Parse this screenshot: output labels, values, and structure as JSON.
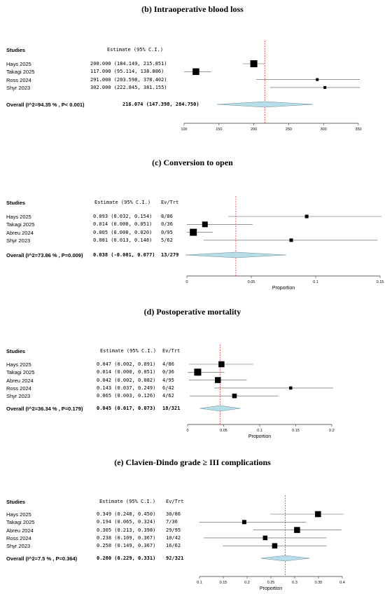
{
  "panels": [
    {
      "title": "(b) Intraoperative blood loss",
      "studies_header": "Studies",
      "estimate_header": "Estimate (95% C.I.)",
      "evtrt_header": "",
      "x_axis_label": "",
      "chart_data": {
        "type": "forest",
        "xlim": [
          100,
          350
        ],
        "ticks": [
          100,
          150,
          200,
          250,
          300,
          350
        ],
        "tick_labels": [
          "100",
          "150",
          "200",
          "250",
          "300",
          "350"
        ],
        "reference_line": 216.074,
        "studies": [
          {
            "name": "Hays 2025",
            "estimate_text": "200.000 (184.149, 215.851)",
            "evtrt": "",
            "est": 200.0,
            "lo": 184.149,
            "hi": 215.851,
            "weight": 1.0
          },
          {
            "name": "Takagi 2025",
            "estimate_text": "117.000 (95.114, 138.886)",
            "evtrt": "",
            "est": 117.0,
            "lo": 95.114,
            "hi": 138.886,
            "weight": 0.95
          },
          {
            "name": "Ross 2024",
            "estimate_text": "291.000 (203.598, 378.402)",
            "evtrt": "",
            "est": 291.0,
            "lo": 203.598,
            "hi": 378.402,
            "weight": 0.4
          },
          {
            "name": "Shyr 2023",
            "estimate_text": "302.000 (222.845, 381.155)",
            "evtrt": "",
            "est": 302.0,
            "lo": 222.845,
            "hi": 381.155,
            "weight": 0.4
          }
        ],
        "overall": {
          "label": "Overall (I^2=94.35 % , P< 0.001)",
          "estimate_text": "216.074 (147.398, 284.750)",
          "evtrt": "",
          "est": 216.074,
          "lo": 147.398,
          "hi": 284.75
        }
      }
    },
    {
      "title": "(c) Conversion to open",
      "studies_header": "Studies",
      "estimate_header": "Estimate (95% C.I.)",
      "evtrt_header": "Ev/Trt",
      "x_axis_label": "Proportion",
      "chart_data": {
        "type": "forest",
        "xlim": [
          0,
          0.15
        ],
        "ticks": [
          0,
          0.05,
          0.1,
          0.15
        ],
        "tick_labels": [
          "0",
          "0.05",
          "0.1",
          "0.15"
        ],
        "reference_line": 0.038,
        "studies": [
          {
            "name": "Hays 2025",
            "estimate_text": "0.093 (0.032, 0.154)",
            "evtrt": "8/86",
            "est": 0.093,
            "lo": 0.032,
            "hi": 0.154,
            "weight": 0.5
          },
          {
            "name": "Takagi 2025",
            "estimate_text": "0.014 (0.000, 0.051)",
            "evtrt": "0/36",
            "est": 0.014,
            "lo": 0.0,
            "hi": 0.051,
            "weight": 0.8
          },
          {
            "name": "Abreu 2024",
            "estimate_text": "0.005 (0.000, 0.020)",
            "evtrt": "0/95",
            "est": 0.005,
            "lo": 0.0,
            "hi": 0.02,
            "weight": 1.0
          },
          {
            "name": "Shyr 2023",
            "estimate_text": "0.081 (0.013, 0.148)",
            "evtrt": "5/62",
            "est": 0.081,
            "lo": 0.013,
            "hi": 0.148,
            "weight": 0.5
          }
        ],
        "overall": {
          "label": "Overall (I^2=73.86 % , P=0.009)",
          "estimate_text": "0.038 (-0.001, 0.077)",
          "evtrt": "13/279",
          "est": 0.038,
          "lo": -0.001,
          "hi": 0.077
        }
      }
    },
    {
      "title": "(d) Postoperative mortality",
      "studies_header": "Studies",
      "estimate_header": "Estimate (95% C.I.)",
      "evtrt_header": "Ev/Trt",
      "x_axis_label": "Proportion",
      "chart_data": {
        "type": "forest",
        "xlim": [
          0,
          0.2
        ],
        "ticks": [
          0,
          0.05,
          0.1,
          0.15,
          0.2
        ],
        "tick_labels": [
          "0",
          "0.05",
          "0.1",
          "0.15",
          "0.2"
        ],
        "reference_line": 0.045,
        "studies": [
          {
            "name": "Hays 2025",
            "estimate_text": "0.047 (0.002, 0.091)",
            "evtrt": "4/86",
            "est": 0.047,
            "lo": 0.002,
            "hi": 0.091,
            "weight": 0.85
          },
          {
            "name": "Takagi 2025",
            "estimate_text": "0.014 (0.000, 0.051)",
            "evtrt": "0/36",
            "est": 0.014,
            "lo": 0.0,
            "hi": 0.051,
            "weight": 1.0
          },
          {
            "name": "Abreu 2024",
            "estimate_text": "0.042 (0.002, 0.082)",
            "evtrt": "4/95",
            "est": 0.042,
            "lo": 0.002,
            "hi": 0.082,
            "weight": 0.85
          },
          {
            "name": "Ross 2024",
            "estimate_text": "0.143 (0.037, 0.249)",
            "evtrt": "6/42",
            "est": 0.143,
            "lo": 0.037,
            "hi": 0.249,
            "weight": 0.45
          },
          {
            "name": "Shyr 2023",
            "estimate_text": "0.065 (0.003, 0.126)",
            "evtrt": "4/62",
            "est": 0.065,
            "lo": 0.003,
            "hi": 0.126,
            "weight": 0.65
          }
        ],
        "overall": {
          "label": "Overall (I^2=36.34 % , P=0.179)",
          "estimate_text": "0.045 (0.017, 0.073)",
          "evtrt": "18/321",
          "est": 0.045,
          "lo": 0.017,
          "hi": 0.073
        }
      }
    },
    {
      "title": "(e) Clavien-Dindo grade ≥ III complications",
      "studies_header": "Studies",
      "estimate_header": "Estimate (95% C.I.)",
      "evtrt_header": "Ev/Trt",
      "x_axis_label": "Proportion",
      "chart_data": {
        "type": "forest",
        "xlim": [
          0.1,
          0.4
        ],
        "ticks": [
          0.1,
          0.15,
          0.2,
          0.25,
          0.3,
          0.35,
          0.4
        ],
        "tick_labels": [
          "0.1",
          "0.15",
          "0.2",
          "0.25",
          "0.3",
          "0.35",
          "0.4"
        ],
        "reference_line": 0.28,
        "studies": [
          {
            "name": "Hays 2025",
            "estimate_text": "0.349 (0.248, 0.450)",
            "evtrt": "30/86",
            "est": 0.349,
            "lo": 0.248,
            "hi": 0.45,
            "weight": 0.85
          },
          {
            "name": "Takagi 2025",
            "estimate_text": "0.194 (0.065, 0.324)",
            "evtrt": "7/36",
            "est": 0.194,
            "lo": 0.065,
            "hi": 0.324,
            "weight": 0.6
          },
          {
            "name": "Abreu 2024",
            "estimate_text": "0.305 (0.213, 0.398)",
            "evtrt": "29/95",
            "est": 0.305,
            "lo": 0.213,
            "hi": 0.398,
            "weight": 0.85
          },
          {
            "name": "Ross 2024",
            "estimate_text": "0.238 (0.109, 0.367)",
            "evtrt": "10/42",
            "est": 0.238,
            "lo": 0.109,
            "hi": 0.367,
            "weight": 0.65
          },
          {
            "name": "Shyr 2023",
            "estimate_text": "0.258 (0.149, 0.367)",
            "evtrt": "16/62",
            "est": 0.258,
            "lo": 0.149,
            "hi": 0.367,
            "weight": 0.75
          }
        ],
        "overall": {
          "label": "Overall (I^2=7.5 % , P=0.364)",
          "estimate_text": "0.280 (0.229, 0.331)",
          "evtrt": "92/321",
          "est": 0.28,
          "lo": 0.229,
          "hi": 0.331
        }
      }
    }
  ],
  "colors": {
    "diamond_fill": "#b7dde8",
    "reference_line": "#e0201b",
    "marker": "#000000",
    "axis": "#333333"
  }
}
